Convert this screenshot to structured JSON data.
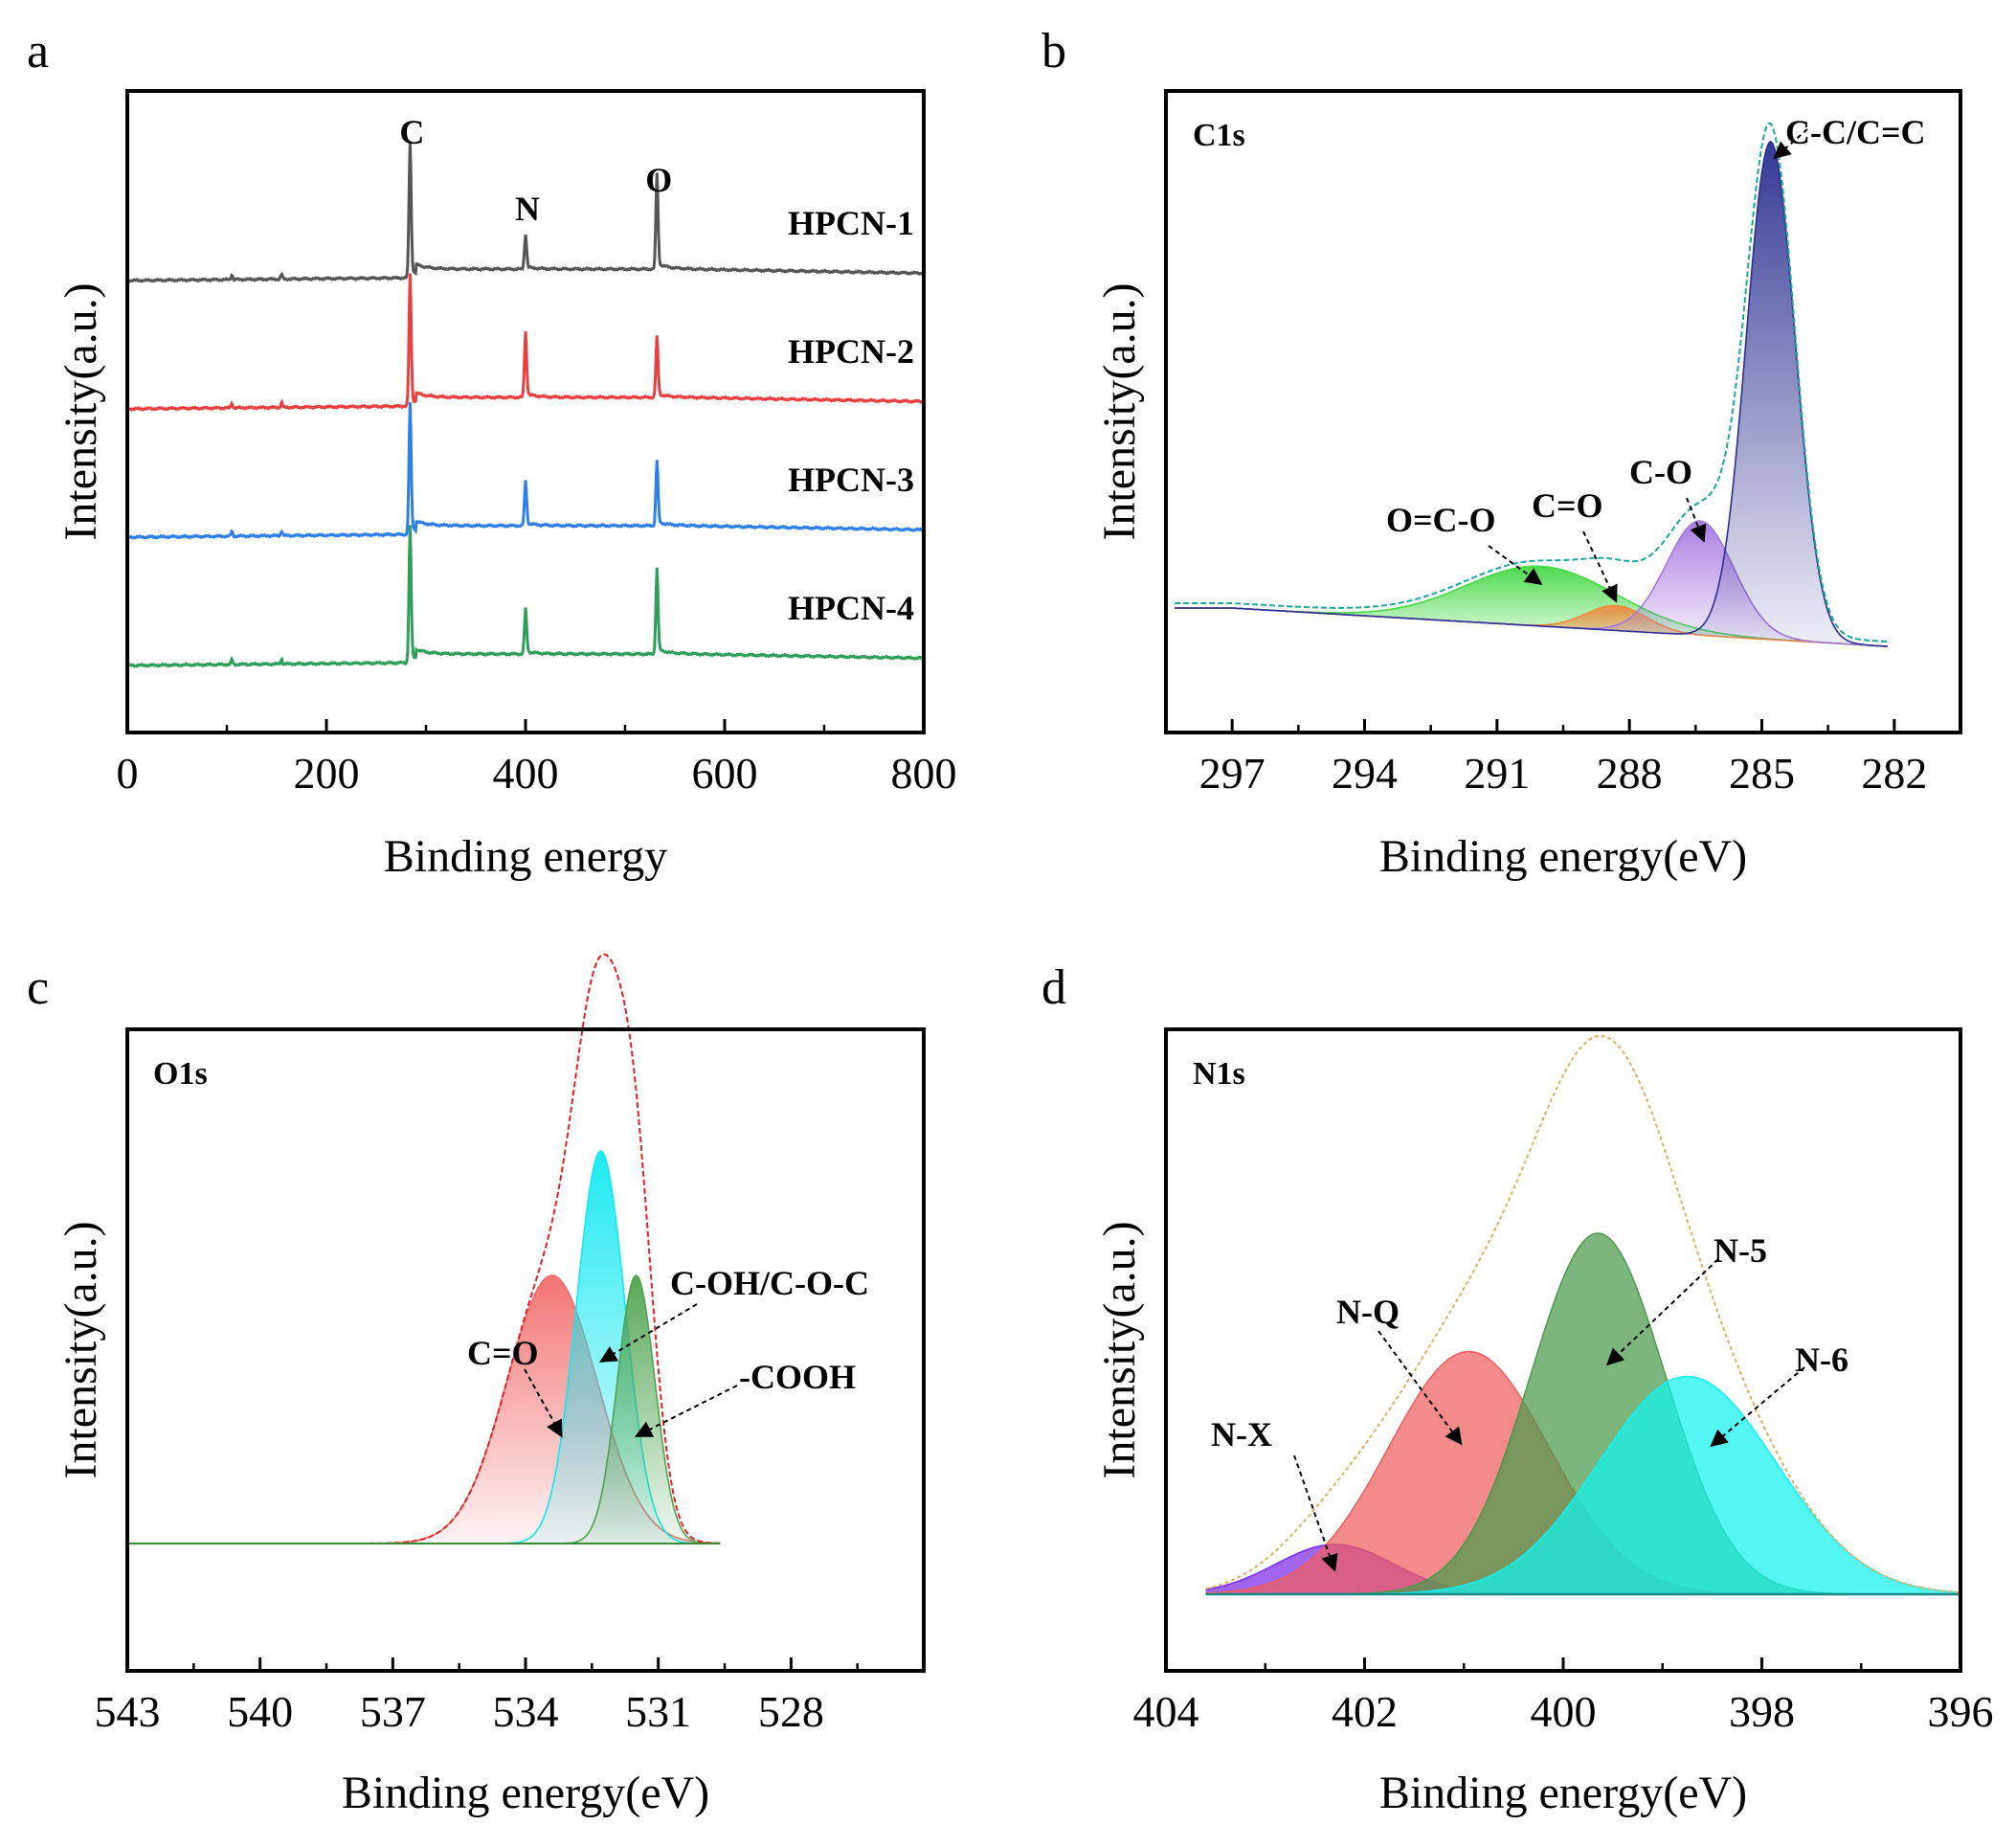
{
  "chart_data": [
    {
      "panel": "a",
      "type": "line",
      "xlabel": "Binding energy",
      "ylabel": "Intensity(a.u.)",
      "xlim": [
        0,
        800
      ],
      "xticks": [
        0,
        200,
        400,
        600,
        800
      ],
      "grid": false,
      "peak_labels": [
        {
          "text": "C",
          "x": 284
        },
        {
          "text": "N",
          "x": 400
        },
        {
          "text": "O",
          "x": 532
        }
      ],
      "series": [
        {
          "name": "HPCN-1",
          "color": "#555555",
          "offset": 3,
          "peaks": [
            {
              "x": 284,
              "h": 1.35,
              "w": 1.3
            },
            {
              "x": 400,
              "h": 0.35,
              "w": 1.3
            },
            {
              "x": 532,
              "h": 0.95,
              "w": 1.3
            }
          ]
        },
        {
          "name": "HPCN-2",
          "color": "#e8403f",
          "offset": 2,
          "peaks": [
            {
              "x": 284,
              "h": 1.3,
              "w": 1.3
            },
            {
              "x": 400,
              "h": 0.65,
              "w": 1.3
            },
            {
              "x": 532,
              "h": 0.6,
              "w": 1.3
            }
          ]
        },
        {
          "name": "HPCN-3",
          "color": "#2f7fe8",
          "offset": 1,
          "peaks": [
            {
              "x": 284,
              "h": 1.3,
              "w": 1.3
            },
            {
              "x": 400,
              "h": 0.45,
              "w": 1.3
            },
            {
              "x": 532,
              "h": 0.65,
              "w": 1.3
            }
          ]
        },
        {
          "name": "HPCN-4",
          "color": "#2e9e5a",
          "offset": 0,
          "peaks": [
            {
              "x": 284,
              "h": 1.35,
              "w": 1.3
            },
            {
              "x": 400,
              "h": 0.45,
              "w": 1.3
            },
            {
              "x": 532,
              "h": 0.85,
              "w": 1.3
            }
          ]
        }
      ]
    },
    {
      "panel": "b",
      "type": "area",
      "title": "C1s",
      "xlabel": "Binding energy(eV)",
      "ylabel": "Intensity(a.u.)",
      "xlim": [
        298.5,
        280.5
      ],
      "xticks": [
        297,
        294,
        291,
        288,
        285,
        282
      ],
      "series": [
        {
          "name": "C-C/C=C",
          "center": 284.8,
          "fwhm": 1.3,
          "height": 1.0,
          "color": "#2b2f8f"
        },
        {
          "name": "C-O",
          "center": 286.4,
          "fwhm": 1.8,
          "height": 0.23,
          "color": "#a678e0"
        },
        {
          "name": "C=O",
          "center": 288.3,
          "fwhm": 1.6,
          "height": 0.05,
          "color": "#f08a3c"
        },
        {
          "name": "O=C-O",
          "center": 290.0,
          "fwhm": 4.0,
          "height": 0.12,
          "color": "#44d844"
        }
      ],
      "annotations": [
        {
          "text": "C-C/C=C",
          "target_x": 284.8
        },
        {
          "text": "C-O",
          "target_x": 286.4
        },
        {
          "text": "C=O",
          "target_x": 288.3
        },
        {
          "text": "O=C-O",
          "target_x": 290.0
        }
      ]
    },
    {
      "panel": "c",
      "type": "area",
      "title": "O1s",
      "xlabel": "Binding energy(eV)",
      "ylabel": "Intensity(a.u.)",
      "xlim": [
        543,
        525
      ],
      "xticks": [
        543,
        540,
        537,
        534,
        531,
        528
      ],
      "data_range": [
        543,
        529.6
      ],
      "series": [
        {
          "name": "C=O",
          "center": 533.4,
          "fwhm": 2.4,
          "height": 0.28,
          "color": "#f26d6d"
        },
        {
          "name": "C-OH/C-O-C",
          "center": 532.3,
          "fwhm": 1.3,
          "height": 0.41,
          "color": "#12e8f0"
        },
        {
          "name": "-COOH",
          "center": 531.5,
          "fwhm": 1.0,
          "height": 0.28,
          "color": "#4fa34f"
        }
      ],
      "annotations": [
        {
          "text": "C=O",
          "target_x": 533.4
        },
        {
          "text": "C-OH/C-O-C",
          "target_x": 532.3
        },
        {
          "text": "-COOH",
          "target_x": 531.5
        }
      ]
    },
    {
      "panel": "d",
      "type": "area",
      "title": "N1s",
      "xlabel": "Binding energy(eV)",
      "ylabel": "Intensity(a.u.)",
      "xlim": [
        404,
        396
      ],
      "xticks": [
        404,
        402,
        400,
        398,
        396
      ],
      "series": [
        {
          "name": "N-X",
          "center": 402.3,
          "fwhm": 1.4,
          "height": 0.08,
          "color": "#7a2ae8"
        },
        {
          "name": "N-Q",
          "center": 400.95,
          "fwhm": 1.9,
          "height": 0.39,
          "color": "#ee5e5e"
        },
        {
          "name": "N-5",
          "center": 399.65,
          "fwhm": 1.6,
          "height": 0.58,
          "color": "#4b9a4b"
        },
        {
          "name": "N-6",
          "center": 398.75,
          "fwhm": 2.1,
          "height": 0.35,
          "color": "#12f2f0"
        }
      ],
      "annotations": [
        {
          "text": "N-X",
          "target_x": 402.3
        },
        {
          "text": "N-Q",
          "target_x": 400.95
        },
        {
          "text": "N-5",
          "target_x": 399.65
        },
        {
          "text": "N-6",
          "target_x": 398.75
        }
      ]
    }
  ]
}
